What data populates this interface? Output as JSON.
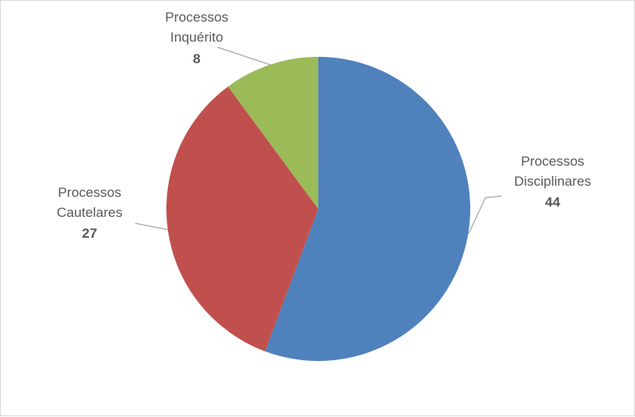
{
  "chart_data": {
    "type": "pie",
    "title": "",
    "slices": [
      {
        "name_lines": [
          "Processos",
          "Disciplinares"
        ],
        "value": 44,
        "value_label": "44",
        "color": "#4f81bd"
      },
      {
        "name_lines": [
          "Processos",
          "Cautelares"
        ],
        "value": 27,
        "value_label": "27",
        "color": "#c0504d"
      },
      {
        "name_lines": [
          "Processos",
          "Inquérito"
        ],
        "value": 8,
        "value_label": "8",
        "color": "#9bbb59"
      }
    ],
    "start_angle_deg": 0,
    "direction": "clockwise",
    "legend": "none",
    "label_style": "outside-with-leader-lines",
    "leader_line_color": "#a6a6a6"
  }
}
